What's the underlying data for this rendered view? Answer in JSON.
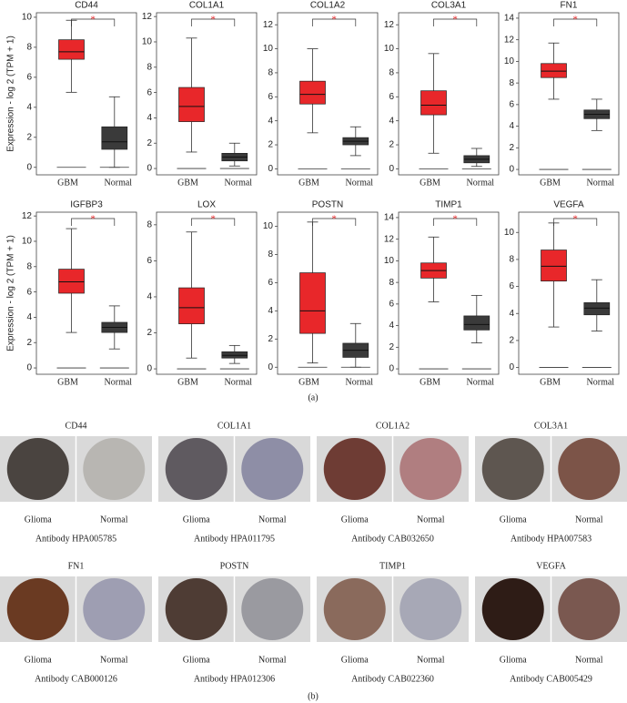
{
  "figure": {
    "panel_a_label": "(a)",
    "panel_b_label": "(b)"
  },
  "chart_data": [
    {
      "type": "box",
      "title": "CD44",
      "y_label": "Expression - log 2 (TPM + 1)",
      "significance": "*",
      "categories": [
        "GBM",
        "Normal"
      ],
      "colors": [
        "#e8272a",
        "#3a3a3a"
      ],
      "ylim": [
        -0.5,
        10.3
      ],
      "yticks": [
        0,
        2,
        4,
        6,
        8,
        10
      ],
      "boxes": [
        {
          "whislo": 5,
          "q1": 7.2,
          "med": 7.7,
          "q3": 8.5,
          "whishi": 9.8
        },
        {
          "whislo": 0,
          "q1": 1.2,
          "med": 1.7,
          "q3": 2.7,
          "whishi": 4.7
        }
      ]
    },
    {
      "type": "box",
      "title": "COL1A1",
      "significance": "*",
      "categories": [
        "GBM",
        "Normal"
      ],
      "colors": [
        "#e8272a",
        "#3a3a3a"
      ],
      "ylim": [
        -0.5,
        12.3
      ],
      "yticks": [
        0,
        2,
        4,
        6,
        8,
        10,
        12
      ],
      "boxes": [
        {
          "whislo": 1.3,
          "q1": 3.7,
          "med": 4.9,
          "q3": 6.4,
          "whishi": 10.3
        },
        {
          "whislo": 0.2,
          "q1": 0.6,
          "med": 0.9,
          "q3": 1.2,
          "whishi": 2.0
        }
      ]
    },
    {
      "type": "box",
      "title": "COL1A2",
      "significance": "*",
      "categories": [
        "GBM",
        "Normal"
      ],
      "colors": [
        "#e8272a",
        "#3a3a3a"
      ],
      "ylim": [
        -0.5,
        13
      ],
      "yticks": [
        0,
        2,
        4,
        6,
        8,
        10,
        12
      ],
      "boxes": [
        {
          "whislo": 3,
          "q1": 5.4,
          "med": 6.2,
          "q3": 7.3,
          "whishi": 10
        },
        {
          "whislo": 1.1,
          "q1": 2.0,
          "med": 2.3,
          "q3": 2.6,
          "whishi": 3.5
        }
      ]
    },
    {
      "type": "box",
      "title": "COL3A1",
      "significance": "*",
      "categories": [
        "GBM",
        "Normal"
      ],
      "colors": [
        "#e8272a",
        "#3a3a3a"
      ],
      "ylim": [
        -0.5,
        13
      ],
      "yticks": [
        0,
        2,
        4,
        6,
        8,
        10,
        12
      ],
      "boxes": [
        {
          "whislo": 1.3,
          "q1": 4.5,
          "med": 5.3,
          "q3": 6.5,
          "whishi": 9.6
        },
        {
          "whislo": 0.2,
          "q1": 0.5,
          "med": 0.8,
          "q3": 1.1,
          "whishi": 1.7
        }
      ]
    },
    {
      "type": "box",
      "title": "FN1",
      "significance": "*",
      "categories": [
        "GBM",
        "Normal"
      ],
      "colors": [
        "#e8272a",
        "#3a3a3a"
      ],
      "ylim": [
        -0.5,
        14.5
      ],
      "yticks": [
        0,
        2,
        4,
        6,
        8,
        10,
        12,
        14
      ],
      "boxes": [
        {
          "whislo": 6.5,
          "q1": 8.5,
          "med": 9.1,
          "q3": 9.8,
          "whishi": 11.7
        },
        {
          "whislo": 3.6,
          "q1": 4.7,
          "med": 5.1,
          "q3": 5.5,
          "whishi": 6.5
        }
      ]
    },
    {
      "type": "box",
      "title": "IGFBP3",
      "y_label": "Expression - log 2 (TPM + 1)",
      "significance": "*",
      "categories": [
        "GBM",
        "Normal"
      ],
      "colors": [
        "#e8272a",
        "#3a3a3a"
      ],
      "ylim": [
        -0.5,
        12.3
      ],
      "yticks": [
        0,
        2,
        4,
        6,
        8,
        10,
        12
      ],
      "boxes": [
        {
          "whislo": 2.8,
          "q1": 5.9,
          "med": 6.8,
          "q3": 7.8,
          "whishi": 11
        },
        {
          "whislo": 1.5,
          "q1": 2.8,
          "med": 3.2,
          "q3": 3.6,
          "whishi": 4.9
        }
      ]
    },
    {
      "type": "box",
      "title": "LOX",
      "significance": "*",
      "categories": [
        "GBM",
        "Normal"
      ],
      "colors": [
        "#e8272a",
        "#3a3a3a"
      ],
      "ylim": [
        -0.3,
        8.7
      ],
      "yticks": [
        0,
        2,
        4,
        6,
        8
      ],
      "boxes": [
        {
          "whislo": 0.6,
          "q1": 2.5,
          "med": 3.4,
          "q3": 4.5,
          "whishi": 7.6
        },
        {
          "whislo": 0.3,
          "q1": 0.6,
          "med": 0.75,
          "q3": 0.95,
          "whishi": 1.3
        }
      ]
    },
    {
      "type": "box",
      "title": "POSTN",
      "significance": "*",
      "categories": [
        "GBM",
        "Normal"
      ],
      "colors": [
        "#e8272a",
        "#3a3a3a"
      ],
      "ylim": [
        -0.5,
        11
      ],
      "yticks": [
        0,
        2,
        4,
        6,
        8,
        10
      ],
      "boxes": [
        {
          "whislo": 0.3,
          "q1": 2.4,
          "med": 4.0,
          "q3": 6.7,
          "whishi": 10.3
        },
        {
          "whislo": 0,
          "q1": 0.7,
          "med": 1.2,
          "q3": 1.7,
          "whishi": 3.1
        }
      ]
    },
    {
      "type": "box",
      "title": "TIMP1",
      "significance": "*",
      "categories": [
        "GBM",
        "Normal"
      ],
      "colors": [
        "#e8272a",
        "#3a3a3a"
      ],
      "ylim": [
        -0.5,
        14.5
      ],
      "yticks": [
        0,
        2,
        4,
        6,
        8,
        10,
        12,
        14
      ],
      "boxes": [
        {
          "whislo": 6.2,
          "q1": 8.4,
          "med": 9.1,
          "q3": 9.8,
          "whishi": 12.2
        },
        {
          "whislo": 2.4,
          "q1": 3.6,
          "med": 4.1,
          "q3": 4.9,
          "whishi": 6.8
        }
      ]
    },
    {
      "type": "box",
      "title": "VEGFA",
      "significance": "*",
      "categories": [
        "GBM",
        "Normal"
      ],
      "colors": [
        "#e8272a",
        "#3a3a3a"
      ],
      "ylim": [
        -0.5,
        11.5
      ],
      "yticks": [
        0,
        2,
        4,
        6,
        8,
        10
      ],
      "boxes": [
        {
          "whislo": 3,
          "q1": 6.4,
          "med": 7.5,
          "q3": 8.7,
          "whishi": 10.7
        },
        {
          "whislo": 2.7,
          "q1": 3.9,
          "med": 4.4,
          "q3": 4.8,
          "whishi": 6.5
        }
      ]
    }
  ],
  "ihc": [
    {
      "gene": "CD44",
      "left": "Glioma",
      "right": "Normal",
      "antibody": "Antibody HPA005785"
    },
    {
      "gene": "COL1A1",
      "left": "Glioma",
      "right": "Normal",
      "antibody": "Antibody HPA011795"
    },
    {
      "gene": "COL1A2",
      "left": "Glioma",
      "right": "Normal",
      "antibody": "Antibody CAB032650"
    },
    {
      "gene": "COL3A1",
      "left": "Glioma",
      "right": "Normal",
      "antibody": "Antibody HPA007583"
    },
    {
      "gene": "FN1",
      "left": "Glioma",
      "right": "Normal",
      "antibody": "Antibody CAB000126"
    },
    {
      "gene": "POSTN",
      "left": "Glioma",
      "right": "Normal",
      "antibody": "Antibody HPA012306"
    },
    {
      "gene": "TIMP1",
      "left": "Glioma",
      "right": "Normal",
      "antibody": "Antibody CAB022360"
    },
    {
      "gene": "VEGFA",
      "left": "Glioma",
      "right": "Normal",
      "antibody": "Antibody CAB005429"
    }
  ]
}
